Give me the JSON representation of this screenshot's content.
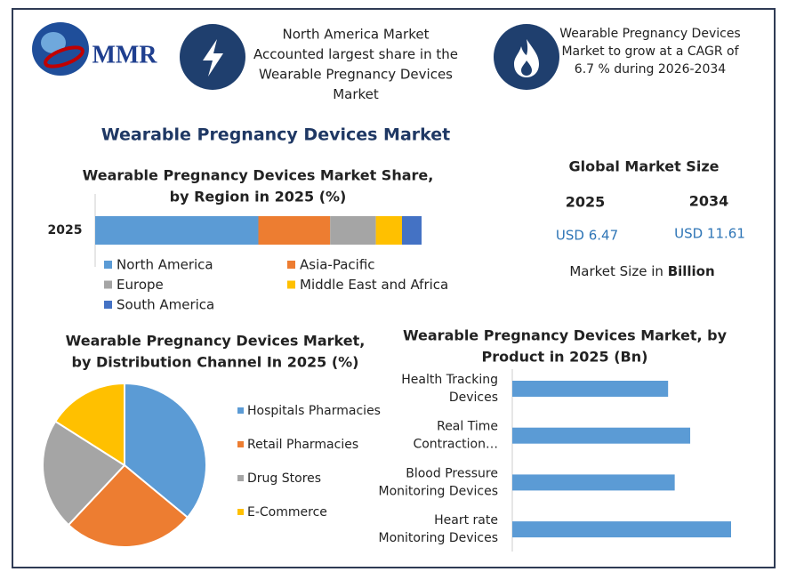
{
  "logo": "MMR",
  "header": {
    "left": [
      "North America Market",
      "Accounted largest share in the",
      "Wearable Pregnancy Devices",
      "Market"
    ],
    "right": [
      "Wearable Pregnancy Devices",
      "Market to grow at a CAGR of",
      "6.7 % during 2026-2034"
    ]
  },
  "title": "Wearable Pregnancy Devices Market",
  "market_size": {
    "title": "Global Market Size",
    "years": [
      "2025",
      "2034"
    ],
    "values": [
      "USD 6.47",
      "USD 11.61"
    ],
    "note": "Market Size in",
    "note_bold": "Billion"
  },
  "chart_data": [
    {
      "type": "bar",
      "stacked": true,
      "orientation": "horizontal",
      "title": [
        "Wearable Pregnancy Devices Market Share,",
        "by Region in 2025 (%)"
      ],
      "categories": [
        "2025"
      ],
      "series": [
        {
          "name": "North America",
          "color": "#5b9bd5",
          "values": [
            50
          ]
        },
        {
          "name": "Asia-Pacific",
          "color": "#ed7d31",
          "values": [
            22
          ]
        },
        {
          "name": "Europe",
          "color": "#a5a5a5",
          "values": [
            14
          ]
        },
        {
          "name": "Middle East and Africa",
          "color": "#ffc000",
          "values": [
            8
          ]
        },
        {
          "name": "South America",
          "color": "#4472c4",
          "values": [
            6
          ]
        }
      ]
    },
    {
      "type": "pie",
      "title": [
        "Wearable Pregnancy Devices Market,",
        "by Distribution Channel In 2025 (%)"
      ],
      "categories": [
        "Hospitals Pharmacies",
        "Retail Pharmacies",
        "Drug Stores",
        "E-Commerce"
      ],
      "values": [
        36,
        26,
        22,
        16
      ],
      "colors": [
        "#5b9bd5",
        "#ed7d31",
        "#a5a5a5",
        "#ffc000"
      ]
    },
    {
      "type": "bar",
      "orientation": "horizontal",
      "title": [
        "Wearable Pregnancy Devices Market, by",
        "Product in 2025 (Bn)"
      ],
      "categories": [
        [
          "Health Tracking",
          "Devices"
        ],
        [
          "Real Time",
          "Contraction…"
        ],
        [
          "Blood Pressure",
          "Monitoring Devices"
        ],
        [
          "Heart rate",
          "Monitoring Devices"
        ]
      ],
      "values": [
        1.41,
        1.61,
        1.47,
        1.98
      ],
      "color": "#5b9bd5"
    }
  ]
}
